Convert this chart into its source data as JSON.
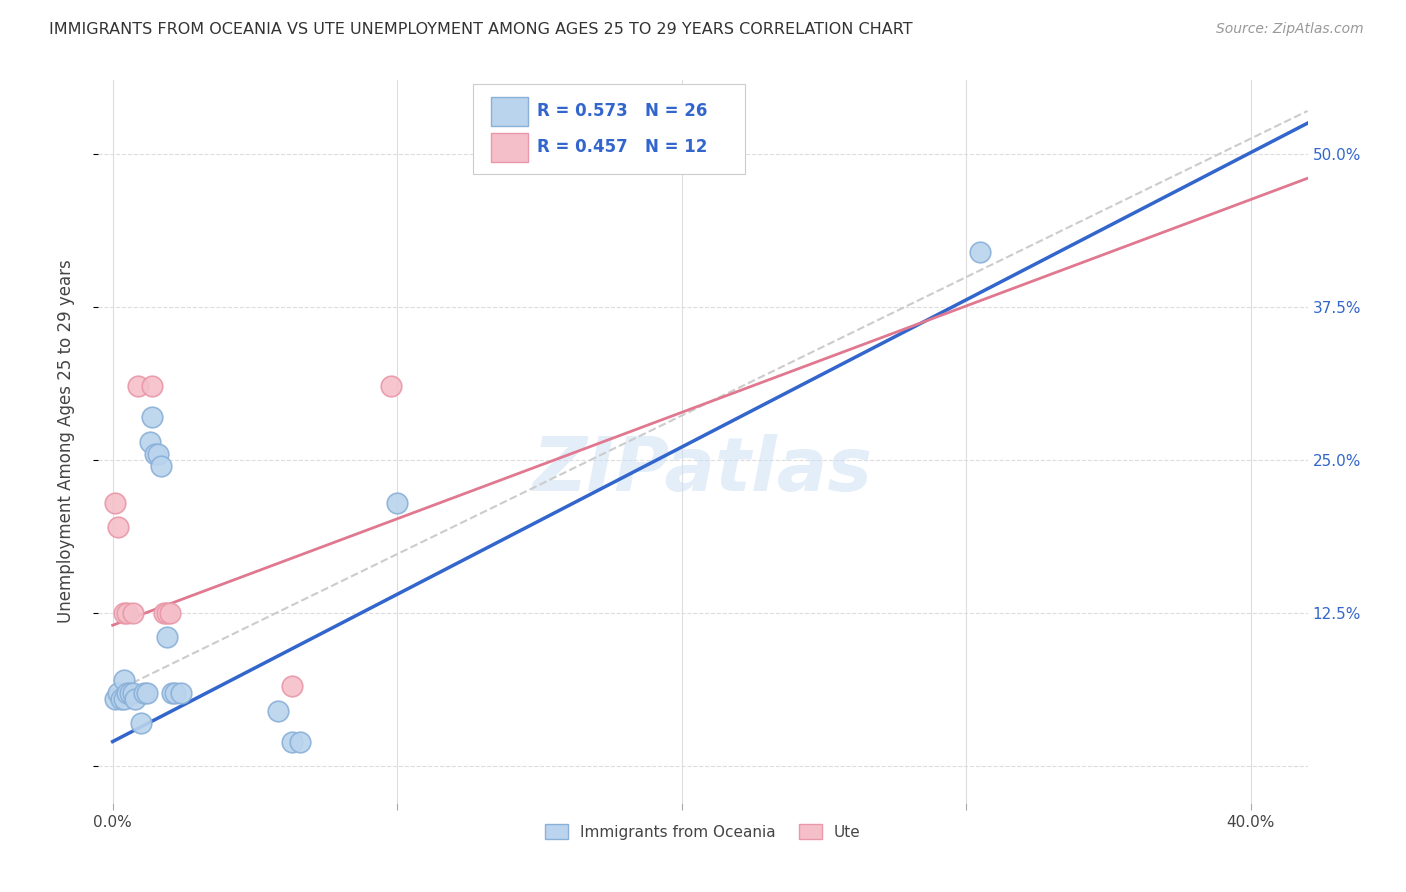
{
  "title": "IMMIGRANTS FROM OCEANIA VS UTE UNEMPLOYMENT AMONG AGES 25 TO 29 YEARS CORRELATION CHART",
  "source": "Source: ZipAtlas.com",
  "ylabel": "Unemployment Among Ages 25 to 29 years",
  "xlim": [
    -0.005,
    0.42
  ],
  "ylim": [
    -0.03,
    0.56
  ],
  "xticks": [
    0.0,
    0.1,
    0.2,
    0.3,
    0.4
  ],
  "xticklabels": [
    "0.0%",
    "",
    "",
    "",
    "40.0%"
  ],
  "yticks": [
    0.0,
    0.125,
    0.25,
    0.375,
    0.5
  ],
  "yticklabels_right": [
    "",
    "12.5%",
    "25.0%",
    "37.5%",
    "50.0%"
  ],
  "grid_color": "#dddddd",
  "background_color": "#ffffff",
  "blue_scatter_face": "#bad4ed",
  "blue_scatter_edge": "#8ab0d8",
  "pink_scatter_face": "#f5bfc9",
  "pink_scatter_edge": "#e898a8",
  "line_blue": "#3366cc",
  "line_pink": "#e07890",
  "line_dashed": "#cccccc",
  "R_blue": 0.573,
  "N_blue": 26,
  "R_pink": 0.457,
  "N_pink": 12,
  "legend_label_blue": "Immigrants from Oceania",
  "legend_label_pink": "Ute",
  "watermark": "ZIPatlas",
  "blue_points": [
    [
      0.001,
      0.055
    ],
    [
      0.002,
      0.06
    ],
    [
      0.003,
      0.055
    ],
    [
      0.004,
      0.07
    ],
    [
      0.004,
      0.055
    ],
    [
      0.005,
      0.06
    ],
    [
      0.006,
      0.06
    ],
    [
      0.007,
      0.06
    ],
    [
      0.008,
      0.055
    ],
    [
      0.01,
      0.035
    ],
    [
      0.011,
      0.06
    ],
    [
      0.012,
      0.06
    ],
    [
      0.013,
      0.265
    ],
    [
      0.014,
      0.285
    ],
    [
      0.015,
      0.255
    ],
    [
      0.016,
      0.255
    ],
    [
      0.017,
      0.245
    ],
    [
      0.019,
      0.105
    ],
    [
      0.021,
      0.06
    ],
    [
      0.022,
      0.06
    ],
    [
      0.024,
      0.06
    ],
    [
      0.058,
      0.045
    ],
    [
      0.063,
      0.02
    ],
    [
      0.066,
      0.02
    ],
    [
      0.1,
      0.215
    ],
    [
      0.305,
      0.42
    ]
  ],
  "pink_points": [
    [
      0.001,
      0.215
    ],
    [
      0.002,
      0.195
    ],
    [
      0.004,
      0.125
    ],
    [
      0.005,
      0.125
    ],
    [
      0.007,
      0.125
    ],
    [
      0.009,
      0.31
    ],
    [
      0.014,
      0.31
    ],
    [
      0.018,
      0.125
    ],
    [
      0.019,
      0.125
    ],
    [
      0.02,
      0.125
    ],
    [
      0.063,
      0.065
    ],
    [
      0.098,
      0.31
    ]
  ],
  "blue_line_x0": 0.0,
  "blue_line_y0": 0.02,
  "blue_line_x1": 0.42,
  "blue_line_y1": 0.525,
  "pink_line_x0": 0.0,
  "pink_line_y0": 0.115,
  "pink_line_x1": 0.42,
  "pink_line_y1": 0.48,
  "dash_line_x0": 0.0,
  "dash_line_y0": 0.06,
  "dash_line_x1": 0.42,
  "dash_line_y1": 0.535,
  "title_fontsize": 11.5,
  "source_fontsize": 10,
  "tick_fontsize": 11,
  "ylabel_fontsize": 12,
  "legend_fontsize": 12,
  "watermark_fontsize": 54
}
